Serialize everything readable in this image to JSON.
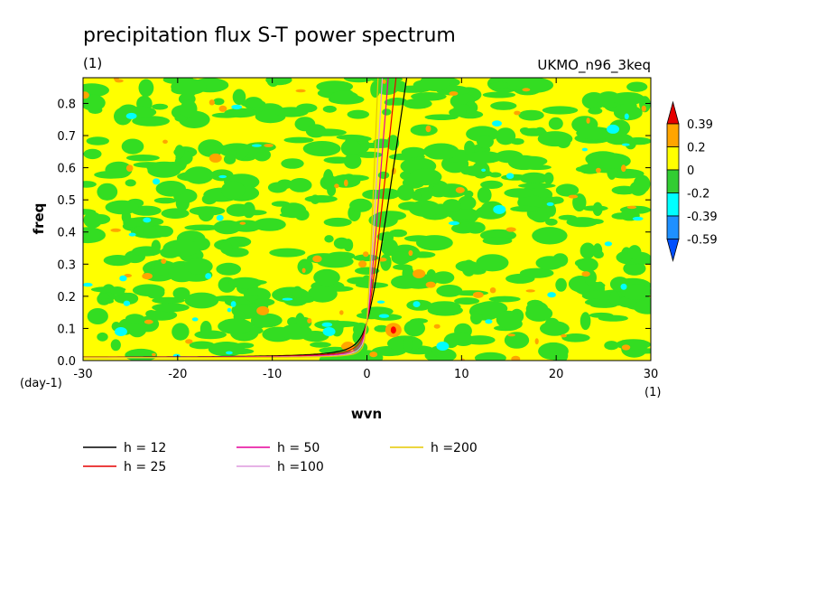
{
  "chart_data": {
    "type": "heatmap",
    "title": "precipitation flux S-T power spectrum",
    "subtitle_left": "(1)",
    "subtitle_right": "UKMO_n96_3keq",
    "xlabel": "wvn",
    "ylabel": "freq",
    "x_unit": "(1)",
    "y_unit": "(day-1)",
    "xlim": [
      -30,
      30
    ],
    "ylim": [
      0,
      0.88
    ],
    "x_ticks": [
      -30,
      -20,
      -10,
      0,
      10,
      20,
      30
    ],
    "y_ticks": [
      0.0,
      0.1,
      0.2,
      0.3,
      0.4,
      0.5,
      0.6,
      0.7,
      0.8
    ],
    "x_tick_labels": [
      "-30",
      "-20",
      "-10",
      "0",
      "10",
      "20",
      "30"
    ],
    "y_tick_labels": [
      "0.0",
      "0.1",
      "0.2",
      "0.3",
      "0.4",
      "0.5",
      "0.6",
      "0.7",
      "0.8"
    ],
    "colorbar": {
      "levels": [
        "0.39",
        "0.2",
        "0",
        "-0.2",
        "-0.39",
        "-0.59"
      ],
      "colors": {
        "over": "#e60000",
        "b_020_039": "#ffa500",
        "b_0_020": "#ffff00",
        "b_m020_0": "#32cd32",
        "b_m039_m020": "#00ffff",
        "b_m059_m039": "#1e90ff",
        "under": "#0050ff"
      }
    },
    "field_colors": {
      "yellow": "#ffff00",
      "green": "#33dd22",
      "orange": "#ffa500",
      "cyan": "#00ffff",
      "red": "#ff0000"
    },
    "field_features": [
      {
        "x": 2.8,
        "y": 0.095,
        "value": "0.39",
        "color": "#ff0000"
      },
      {
        "x": -2.0,
        "y": 0.045,
        "value": "0.2",
        "color": "#ffa500"
      },
      {
        "x": 5.5,
        "y": 0.27,
        "value": "0.2",
        "color": "#ffa500"
      },
      {
        "x": -11.0,
        "y": 0.155,
        "value": "0.2",
        "color": "#ffa500"
      },
      {
        "x": -4.0,
        "y": 0.09,
        "value": "-0.39",
        "color": "#00ffff"
      },
      {
        "x": 8.0,
        "y": 0.045,
        "value": "-0.39",
        "color": "#00ffff"
      },
      {
        "x": -26.0,
        "y": 0.09,
        "value": "-0.39",
        "color": "#00ffff"
      },
      {
        "x": 14.0,
        "y": 0.47,
        "value": "-0.39",
        "color": "#00ffff"
      },
      {
        "x": -16.0,
        "y": 0.63,
        "value": "0.2",
        "color": "#ffa500"
      },
      {
        "x": 26.0,
        "y": 0.72,
        "value": "-0.39",
        "color": "#00ffff"
      }
    ],
    "series": [
      {
        "name": "h = 12",
        "color": "#000000",
        "equivalent_depth_m": 12
      },
      {
        "name": "h = 25",
        "color": "#e60000",
        "equivalent_depth_m": 25
      },
      {
        "name": "h = 50",
        "color": "#e6009a",
        "equivalent_depth_m": 50
      },
      {
        "name": "h =100",
        "color": "#dd99dd",
        "equivalent_depth_m": 100
      },
      {
        "name": "h =200",
        "color": "#e6c800",
        "equivalent_depth_m": 200
      }
    ],
    "grid": false,
    "legend_position": "bottom-left"
  }
}
